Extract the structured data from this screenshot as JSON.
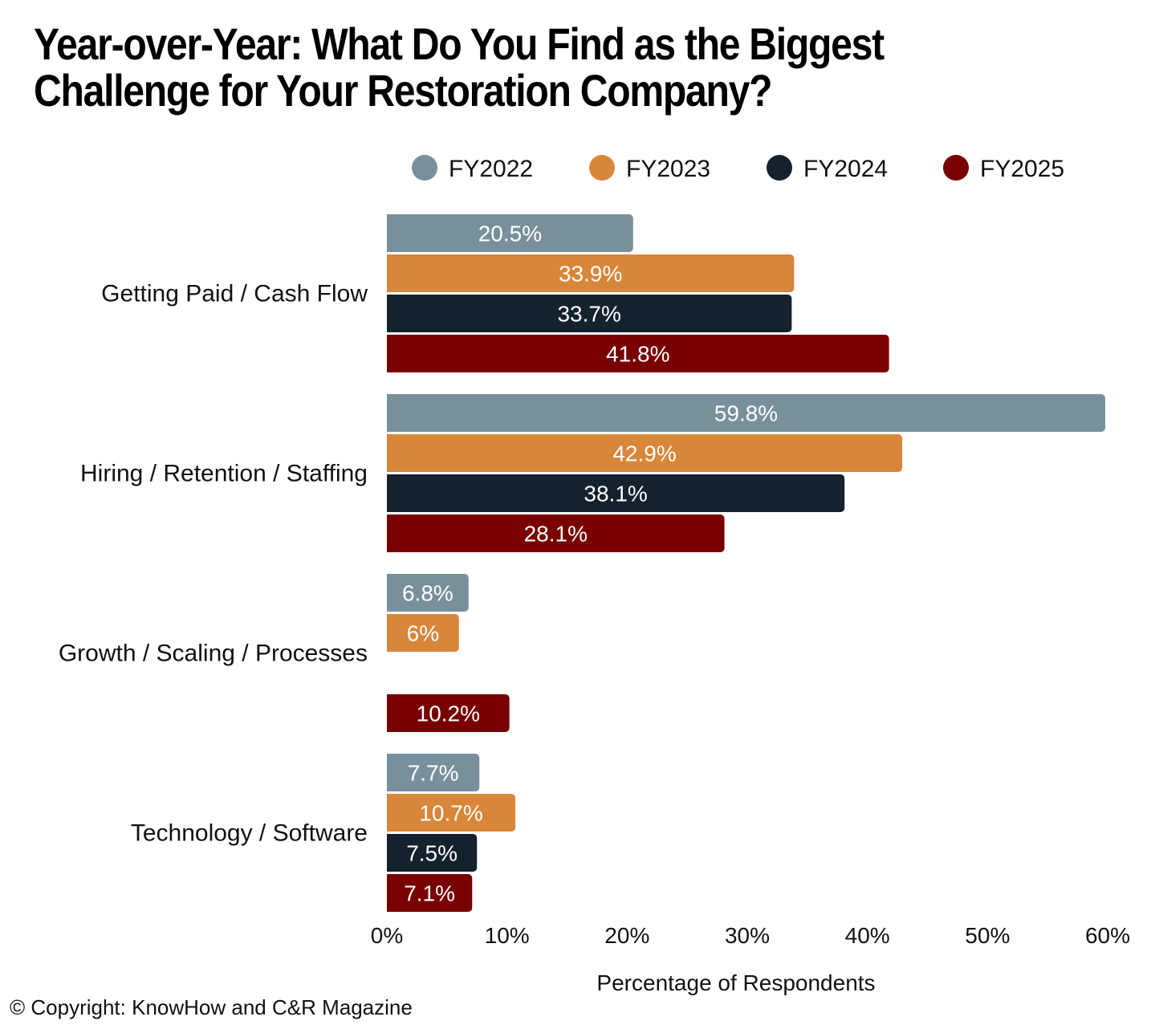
{
  "chart_data": {
    "type": "bar",
    "orientation": "horizontal",
    "title": "Year-over-Year: What Do You Find as the Biggest Challenge for Your Restoration Company?",
    "xlabel": "Percentage of Respondents",
    "ylabel": "",
    "xlim": [
      0,
      60
    ],
    "xticks": [
      "0%",
      "10%",
      "20%",
      "30%",
      "40%",
      "50%",
      "60%"
    ],
    "categories": [
      "Getting Paid / Cash Flow",
      "Hiring / Retention / Staffing",
      "Growth / Scaling / Processes",
      "Technology / Software"
    ],
    "series": [
      {
        "name": "FY2022",
        "color": "#78909c",
        "values": [
          20.5,
          59.8,
          6.8,
          7.7
        ],
        "labels": [
          "20.5%",
          "59.8%",
          "6.8%",
          "7.7%"
        ]
      },
      {
        "name": "FY2023",
        "color": "#d8863a",
        "values": [
          33.9,
          42.9,
          6,
          10.7
        ],
        "labels": [
          "33.9%",
          "42.9%",
          "6%",
          "10.7%"
        ]
      },
      {
        "name": "FY2024",
        "color": "#15222e",
        "values": [
          33.7,
          38.1,
          null,
          7.5
        ],
        "labels": [
          "33.7%",
          "38.1%",
          "",
          "7.5%"
        ]
      },
      {
        "name": "FY2025",
        "color": "#780000",
        "values": [
          41.8,
          28.1,
          10.2,
          7.1
        ],
        "labels": [
          "41.8%",
          "28.1%",
          "10.2%",
          "7.1%"
        ]
      }
    ],
    "legend_position": "top",
    "grid": false
  },
  "copyright": "© Copyright: KnowHow and C&R Magazine"
}
